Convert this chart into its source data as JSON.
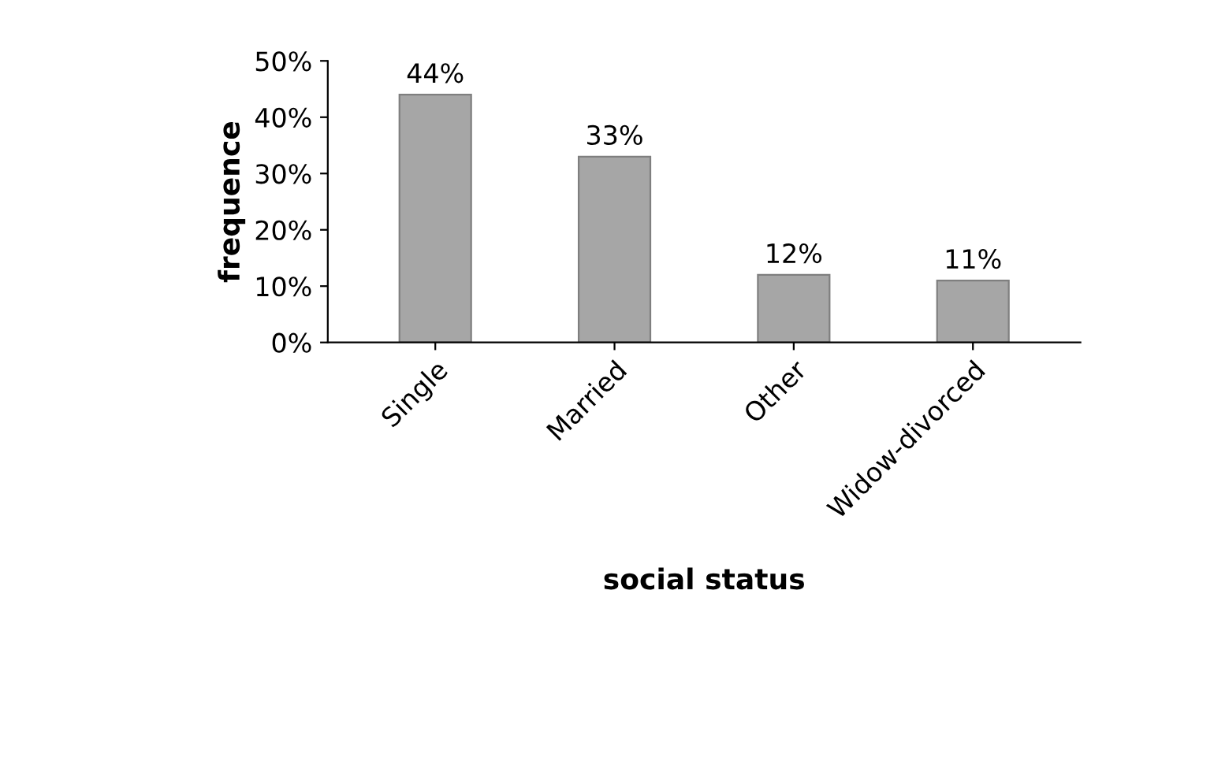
{
  "chart_data": {
    "type": "bar",
    "xlabel": "social status",
    "ylabel": "frequence",
    "categories": [
      "Single",
      "Married",
      "Other",
      "Widow-divorced"
    ],
    "values": [
      44,
      33,
      12,
      11
    ],
    "value_labels": [
      "44%",
      "33%",
      "12%",
      "11%"
    ],
    "color": "#a6a6a6",
    "ylim": [
      0,
      50
    ],
    "yticks": [
      {
        "value": 0,
        "label": "0%"
      },
      {
        "value": 10,
        "label": "10%"
      },
      {
        "value": 20,
        "label": "20%"
      },
      {
        "value": 30,
        "label": "30%"
      },
      {
        "value": 40,
        "label": "40%"
      },
      {
        "value": 50,
        "label": "50%"
      }
    ],
    "grid": false,
    "legend": false
  }
}
